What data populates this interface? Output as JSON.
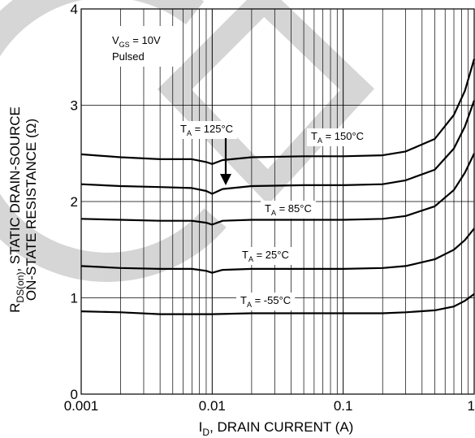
{
  "chart_data": {
    "type": "line",
    "title": "",
    "xlabel": {
      "main": "I",
      "sub": "D",
      "rest": ", DRAIN CURRENT (A)"
    },
    "ylabel": {
      "line1_main": "R",
      "line1_sub": "DS(on)",
      "line1_rest": ", STATIC DRAIN-SOURCE",
      "line2": "ON-STATE RESISTANCE (Ω)"
    },
    "x_scale": "log",
    "xlim": [
      0.001,
      1
    ],
    "ylim": [
      0,
      4
    ],
    "x_ticks": [
      {
        "value": 0.001,
        "label": "0.001"
      },
      {
        "value": 0.01,
        "label": "0.01"
      },
      {
        "value": 0.1,
        "label": "0.1"
      },
      {
        "value": 1,
        "label": "1"
      }
    ],
    "y_ticks": [
      {
        "value": 0,
        "label": "0"
      },
      {
        "value": 1,
        "label": "1"
      },
      {
        "value": 2,
        "label": "2"
      },
      {
        "value": 3,
        "label": "3"
      },
      {
        "value": 4,
        "label": "4"
      }
    ],
    "grid": true,
    "conditions": {
      "vgs_main": "V",
      "vgs_sub": "GS",
      "vgs_rest": " = 10V",
      "mode": "Pulsed"
    },
    "series": [
      {
        "name": "T_A = 150°C",
        "label": {
          "main": "T",
          "sub": "A",
          "rest": " = 150°C"
        },
        "points": [
          [
            0.001,
            2.49
          ],
          [
            0.002,
            2.46
          ],
          [
            0.004,
            2.44
          ],
          [
            0.007,
            2.44
          ],
          [
            0.009,
            2.41
          ],
          [
            0.01,
            2.39
          ],
          [
            0.012,
            2.43
          ],
          [
            0.02,
            2.46
          ],
          [
            0.05,
            2.47
          ],
          [
            0.1,
            2.47
          ],
          [
            0.2,
            2.48
          ],
          [
            0.3,
            2.52
          ],
          [
            0.5,
            2.65
          ],
          [
            0.7,
            2.9
          ],
          [
            0.85,
            3.15
          ],
          [
            1,
            3.48
          ]
        ]
      },
      {
        "name": "T_A = 125°C",
        "label": {
          "main": "T",
          "sub": "A",
          "rest": " = 125°C"
        },
        "points": [
          [
            0.001,
            2.18
          ],
          [
            0.002,
            2.16
          ],
          [
            0.004,
            2.15
          ],
          [
            0.007,
            2.14
          ],
          [
            0.009,
            2.11
          ],
          [
            0.01,
            2.08
          ],
          [
            0.012,
            2.13
          ],
          [
            0.02,
            2.16
          ],
          [
            0.05,
            2.17
          ],
          [
            0.1,
            2.17
          ],
          [
            0.2,
            2.18
          ],
          [
            0.3,
            2.22
          ],
          [
            0.5,
            2.33
          ],
          [
            0.7,
            2.55
          ],
          [
            0.85,
            2.78
          ],
          [
            1,
            3.05
          ]
        ]
      },
      {
        "name": "T_A = 85°C",
        "label": {
          "main": "T",
          "sub": "A",
          "rest": " = 85°C"
        },
        "points": [
          [
            0.001,
            1.82
          ],
          [
            0.002,
            1.81
          ],
          [
            0.004,
            1.8
          ],
          [
            0.007,
            1.8
          ],
          [
            0.009,
            1.78
          ],
          [
            0.01,
            1.76
          ],
          [
            0.012,
            1.8
          ],
          [
            0.02,
            1.81
          ],
          [
            0.05,
            1.81
          ],
          [
            0.1,
            1.81
          ],
          [
            0.2,
            1.82
          ],
          [
            0.3,
            1.85
          ],
          [
            0.5,
            1.95
          ],
          [
            0.7,
            2.12
          ],
          [
            0.85,
            2.3
          ],
          [
            1,
            2.5
          ]
        ]
      },
      {
        "name": "T_A = 25°C",
        "label": {
          "main": "T",
          "sub": "A",
          "rest": " = 25°C"
        },
        "points": [
          [
            0.001,
            1.33
          ],
          [
            0.002,
            1.31
          ],
          [
            0.004,
            1.3
          ],
          [
            0.007,
            1.3
          ],
          [
            0.009,
            1.28
          ],
          [
            0.01,
            1.26
          ],
          [
            0.012,
            1.29
          ],
          [
            0.02,
            1.3
          ],
          [
            0.05,
            1.3
          ],
          [
            0.1,
            1.3
          ],
          [
            0.2,
            1.31
          ],
          [
            0.3,
            1.33
          ],
          [
            0.5,
            1.4
          ],
          [
            0.7,
            1.5
          ],
          [
            0.85,
            1.6
          ],
          [
            1,
            1.72
          ]
        ]
      },
      {
        "name": "T_A = -55°C",
        "label": {
          "main": "T",
          "sub": "A",
          "rest": " = -55°C"
        },
        "points": [
          [
            0.001,
            0.86
          ],
          [
            0.002,
            0.85
          ],
          [
            0.004,
            0.83
          ],
          [
            0.007,
            0.83
          ],
          [
            0.01,
            0.83
          ],
          [
            0.02,
            0.84
          ],
          [
            0.05,
            0.84
          ],
          [
            0.1,
            0.84
          ],
          [
            0.2,
            0.84
          ],
          [
            0.3,
            0.85
          ],
          [
            0.5,
            0.87
          ],
          [
            0.7,
            0.91
          ],
          [
            0.85,
            0.97
          ],
          [
            1,
            1.04
          ]
        ]
      }
    ]
  }
}
